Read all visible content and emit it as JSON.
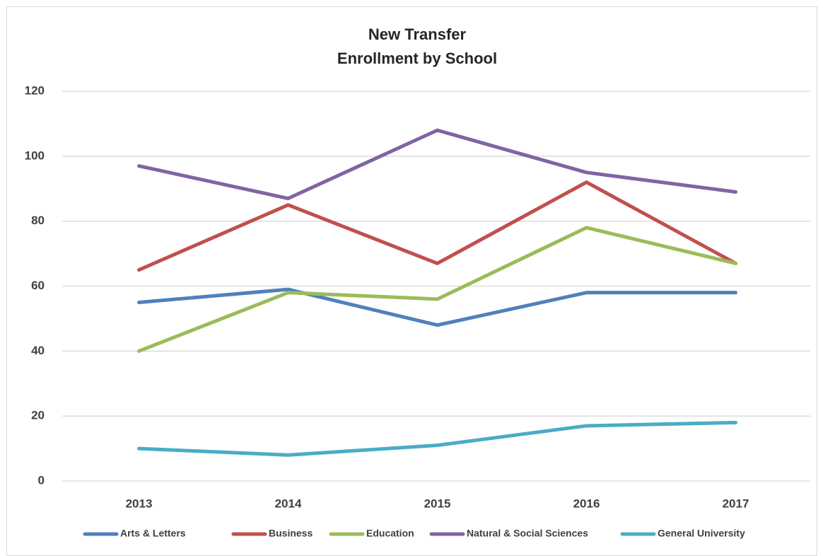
{
  "chart_data": {
    "type": "line",
    "title": [
      "New Transfer",
      "Enrollment by  School"
    ],
    "categories": [
      "2013",
      "2014",
      "2015",
      "2016",
      "2017"
    ],
    "series": [
      {
        "name": "Arts & Letters",
        "color": "#4f81bd",
        "values": [
          55,
          59,
          48,
          58,
          58
        ]
      },
      {
        "name": "Business",
        "color": "#c0504d",
        "values": [
          65,
          85,
          67,
          92,
          67
        ]
      },
      {
        "name": "Education",
        "color": "#9bbb59",
        "values": [
          40,
          58,
          56,
          78,
          67
        ]
      },
      {
        "name": "Natural & Social Sciences",
        "color": "#8064a2",
        "values": [
          97,
          87,
          108,
          95,
          89
        ]
      },
      {
        "name": "General University",
        "color": "#4bacc6",
        "values": [
          10,
          8,
          11,
          17,
          18
        ]
      }
    ],
    "ylim": [
      0,
      120
    ],
    "yticks": [
      0,
      20,
      40,
      60,
      80,
      100,
      120
    ],
    "grid": true,
    "legend": "bottom"
  }
}
